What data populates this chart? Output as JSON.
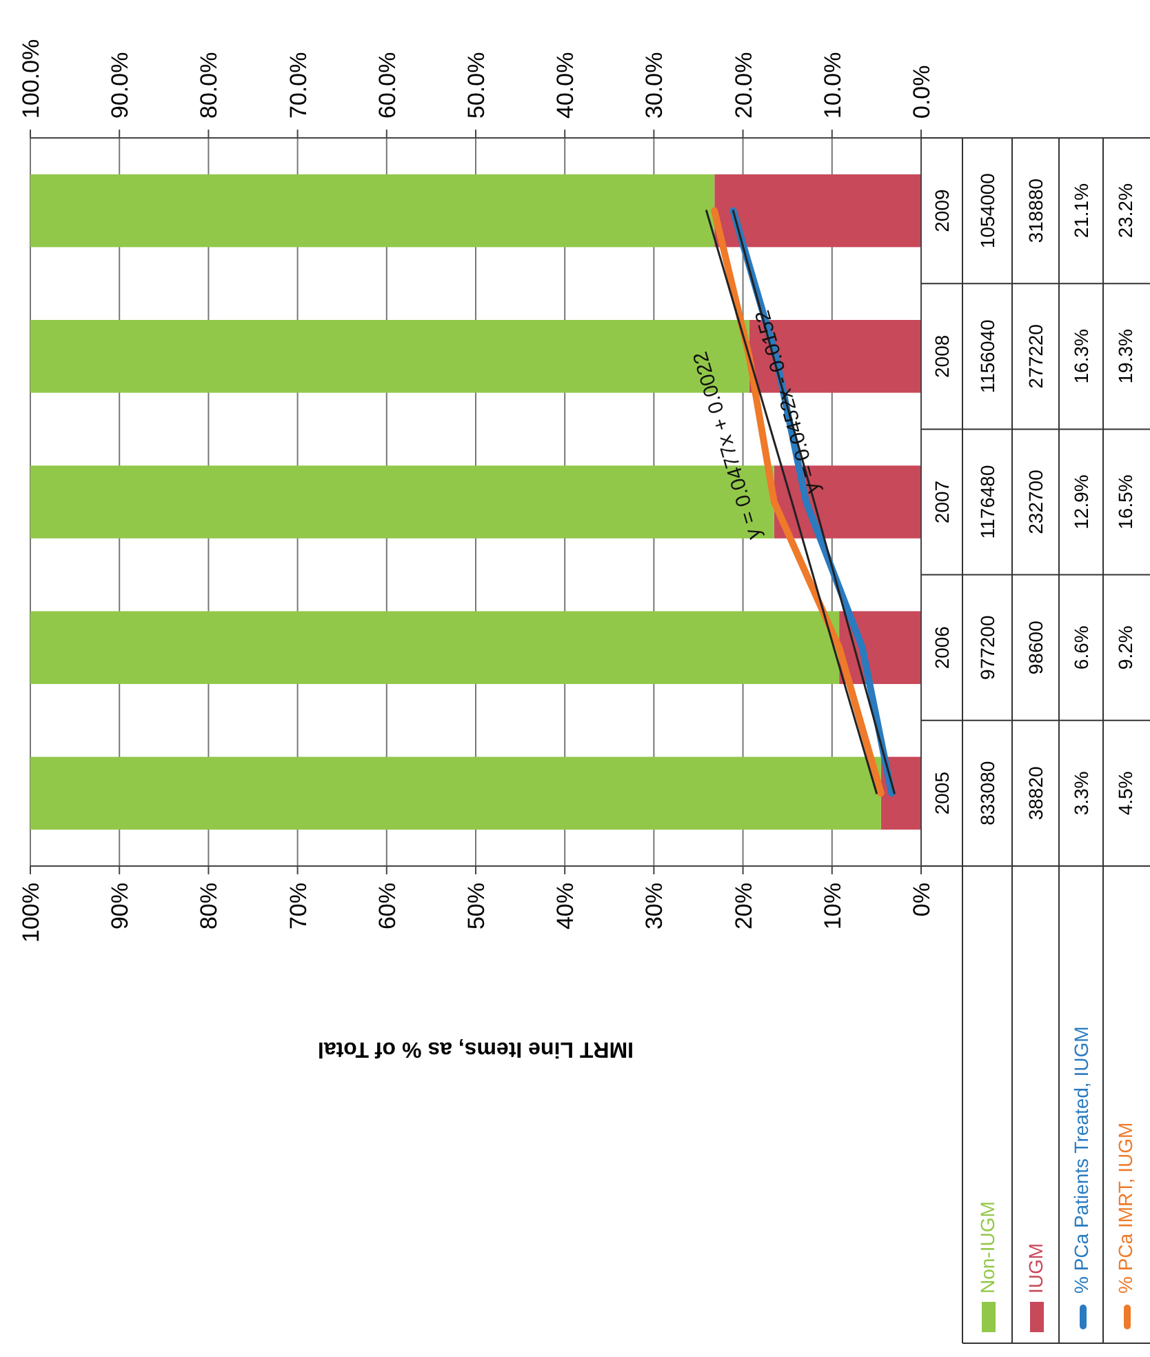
{
  "chart_data": {
    "type": "bar",
    "stacked": true,
    "orientation": "horizontal",
    "xlabel": "IMRT Line Items, as % of Total",
    "categories": [
      "2009",
      "2008",
      "2007",
      "2006",
      "2005"
    ],
    "series": [
      {
        "name": "IUGM",
        "color": "#c8495a",
        "values": [
          23.2,
          19.3,
          16.5,
          9.2,
          4.5
        ]
      },
      {
        "name": "Non-IUGM",
        "color": "#92c84a",
        "values": [
          76.8,
          80.7,
          83.5,
          90.8,
          95.5
        ]
      },
      {
        "name": "% PCa Patients Treated, IUGM",
        "type": "line",
        "axis": "x2",
        "color": "#2a7bc0",
        "values": [
          21.1,
          16.3,
          12.9,
          6.6,
          3.3
        ]
      },
      {
        "name": "% PCa IMRT, IUGM",
        "type": "line",
        "axis": "x2",
        "color": "#ee7a2a",
        "values": [
          23.2,
          19.3,
          16.5,
          9.2,
          4.5
        ]
      },
      {
        "type": "line",
        "axis": "x2",
        "color": "#222222",
        "values": [
          24.1,
          19.3,
          14.5,
          9.8,
          5.0
        ]
      },
      {
        "type": "line",
        "axis": "x2",
        "color": "#222222",
        "values": [
          21.1,
          16.6,
          12.0,
          7.5,
          3.0
        ]
      }
    ],
    "xlim": [
      100,
      0
    ],
    "xticks": [
      {
        "value": 100,
        "label": "100%"
      },
      {
        "value": 90,
        "label": "90%"
      },
      {
        "value": 80,
        "label": "80%"
      },
      {
        "value": 70,
        "label": "70%"
      },
      {
        "value": 60,
        "label": "60%"
      },
      {
        "value": 50,
        "label": "50%"
      },
      {
        "value": 40,
        "label": "40%"
      },
      {
        "value": 30,
        "label": "30%"
      },
      {
        "value": 20,
        "label": "20%"
      },
      {
        "value": 10,
        "label": "10%"
      },
      {
        "value": 0,
        "label": "0%"
      }
    ],
    "x2lim": [
      100,
      0
    ],
    "x2ticks": [
      {
        "value": 100,
        "label": "100.0%"
      },
      {
        "value": 90,
        "label": "90.0%"
      },
      {
        "value": 80,
        "label": "80.0%"
      },
      {
        "value": 70,
        "label": "70.0%"
      },
      {
        "value": 60,
        "label": "60.0%"
      },
      {
        "value": 50,
        "label": "50.0%"
      },
      {
        "value": 40,
        "label": "40.0%"
      },
      {
        "value": 30,
        "label": "30.0%"
      },
      {
        "value": 20,
        "label": "20.0%"
      },
      {
        "value": 10,
        "label": "10.0%"
      },
      {
        "value": 0,
        "label": "0.0%"
      }
    ],
    "grid": "x",
    "legend": "bottom",
    "annotations": [
      "y = 0.0477x + 0.0022",
      "y = 0.0452x - 0.0152",
      "1054000",
      "1156040",
      "1176480",
      "977200",
      "833080",
      "318880",
      "277220",
      "232700",
      "98600",
      "38820",
      "21.1%",
      "16.3%",
      "12.9%",
      "6.6%",
      "3.3%",
      "23.2%",
      "19.3%",
      "16.5%",
      "9.2%",
      "4.5%"
    ]
  }
}
